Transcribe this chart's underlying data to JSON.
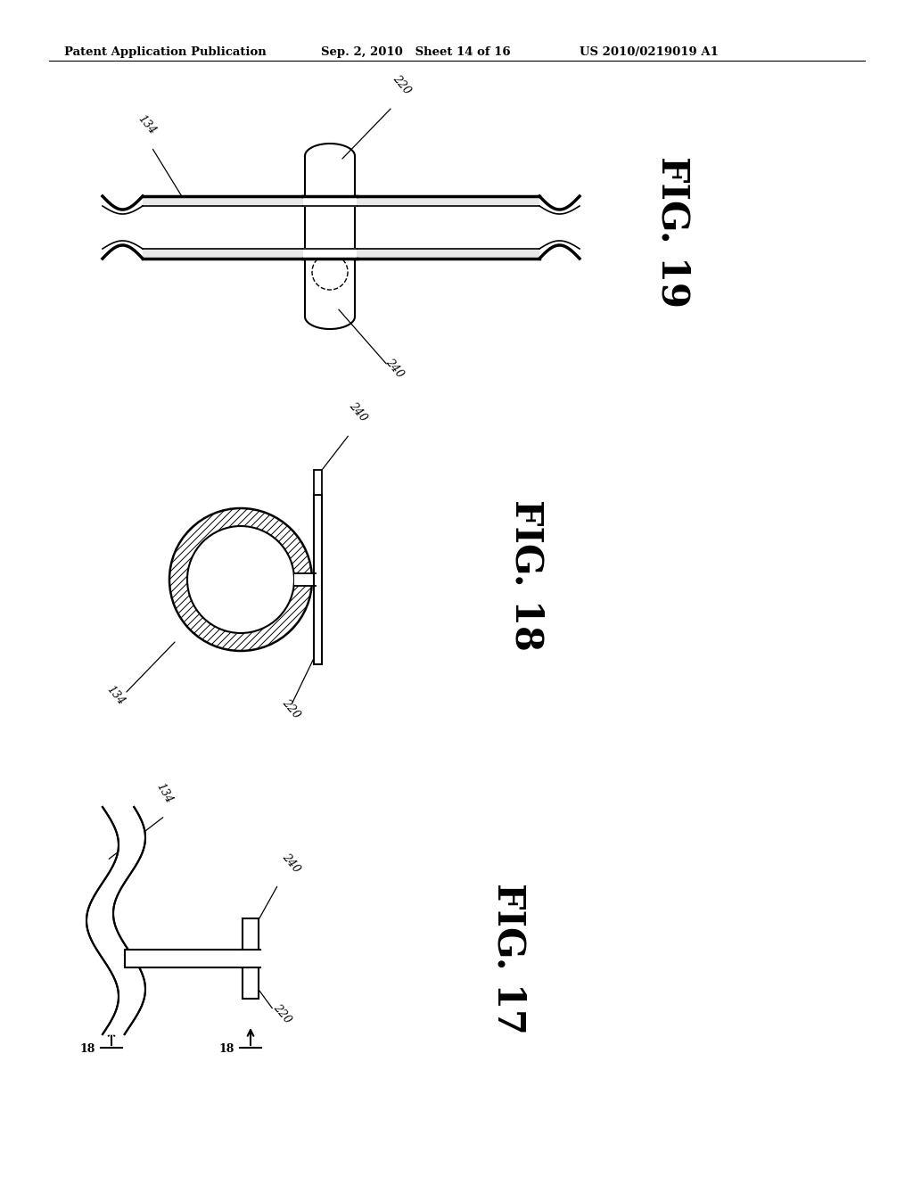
{
  "header_left": "Patent Application Publication",
  "header_mid": "Sep. 2, 2010   Sheet 14 of 16",
  "header_right": "US 2010/0219019 A1",
  "fig19_label": "FIG. 19",
  "fig18_label": "FIG. 18",
  "fig17_label": "FIG. 17",
  "ref_134": "134",
  "ref_220": "220",
  "ref_240": "240",
  "ref_18": "18",
  "bg_color": "#ffffff",
  "line_color": "#000000"
}
